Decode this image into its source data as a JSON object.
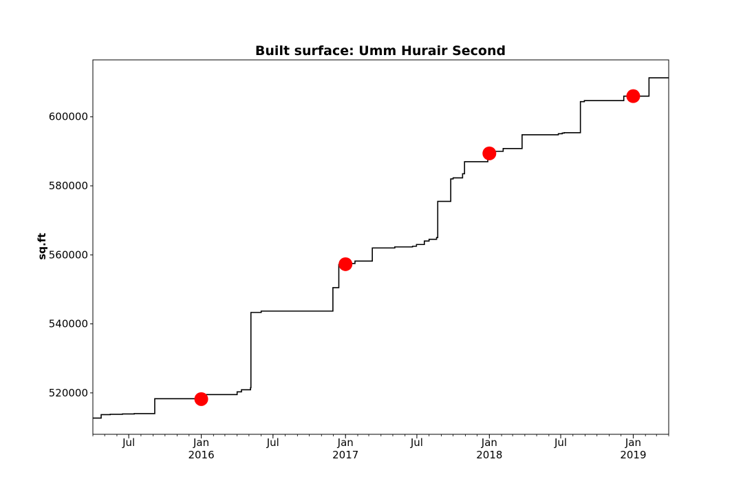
{
  "chart_data": {
    "type": "line",
    "title": "Built surface: Umm Hurair Second",
    "xlabel": "",
    "ylabel": "sq.ft",
    "xlim": [
      "2015-04-01",
      "2019-04-01"
    ],
    "ylim": [
      508000,
      616500
    ],
    "grid": false,
    "y_ticks": [
      {
        "value": 520000,
        "label": "520000"
      },
      {
        "value": 540000,
        "label": "540000"
      },
      {
        "value": 560000,
        "label": "560000"
      },
      {
        "value": 580000,
        "label": "580000"
      },
      {
        "value": 600000,
        "label": "600000"
      }
    ],
    "x_ticks_major": [
      {
        "date": "2015-07-01",
        "label": "Jul",
        "sublabel": ""
      },
      {
        "date": "2016-01-01",
        "label": "Jan",
        "sublabel": "2016"
      },
      {
        "date": "2016-07-01",
        "label": "Jul",
        "sublabel": ""
      },
      {
        "date": "2017-01-01",
        "label": "Jan",
        "sublabel": "2017"
      },
      {
        "date": "2017-07-01",
        "label": "Jul",
        "sublabel": ""
      },
      {
        "date": "2018-01-01",
        "label": "Jan",
        "sublabel": "2018"
      },
      {
        "date": "2018-07-01",
        "label": "Jul",
        "sublabel": ""
      },
      {
        "date": "2019-01-01",
        "label": "Jan",
        "sublabel": "2019"
      }
    ],
    "series": [
      {
        "type": "step",
        "color": "#000000",
        "points": [
          [
            "2015-04-01",
            512700
          ],
          [
            "2015-04-22",
            513700
          ],
          [
            "2015-05-15",
            513800
          ],
          [
            "2015-06-15",
            513900
          ],
          [
            "2015-07-15",
            514000
          ],
          [
            "2015-09-05",
            518300
          ],
          [
            "2015-12-08",
            518300
          ],
          [
            "2016-01-10",
            519500
          ],
          [
            "2016-04-01",
            520300
          ],
          [
            "2016-04-12",
            520900
          ],
          [
            "2016-05-05",
            521500
          ],
          [
            "2016-05-06",
            543300
          ],
          [
            "2016-06-01",
            543700
          ],
          [
            "2016-11-30",
            550500
          ],
          [
            "2016-12-15",
            557200
          ],
          [
            "2017-01-10",
            557500
          ],
          [
            "2017-01-25",
            558200
          ],
          [
            "2017-03-10",
            562000
          ],
          [
            "2017-05-06",
            562300
          ],
          [
            "2017-06-20",
            562500
          ],
          [
            "2017-06-30",
            563000
          ],
          [
            "2017-07-20",
            564000
          ],
          [
            "2017-08-01",
            564500
          ],
          [
            "2017-08-20",
            565000
          ],
          [
            "2017-08-23",
            575500
          ],
          [
            "2017-09-25",
            582000
          ],
          [
            "2017-10-01",
            582300
          ],
          [
            "2017-10-25",
            583500
          ],
          [
            "2017-10-30",
            587000
          ],
          [
            "2017-12-28",
            589000
          ],
          [
            "2018-01-15",
            590000
          ],
          [
            "2018-02-05",
            590800
          ],
          [
            "2018-03-25",
            594800
          ],
          [
            "2018-06-25",
            595100
          ],
          [
            "2018-07-05",
            595300
          ],
          [
            "2018-07-10",
            595400
          ],
          [
            "2018-08-20",
            604400
          ],
          [
            "2018-08-30",
            604700
          ],
          [
            "2018-12-08",
            606000
          ],
          [
            "2019-02-10",
            611300
          ],
          [
            "2019-04-01",
            611300
          ]
        ]
      },
      {
        "type": "scatter",
        "color": "#ff0000",
        "points": [
          [
            "2016-01-01",
            518200
          ],
          [
            "2017-01-01",
            557300
          ],
          [
            "2018-01-01",
            589400
          ],
          [
            "2019-01-01",
            606000
          ]
        ]
      }
    ]
  }
}
